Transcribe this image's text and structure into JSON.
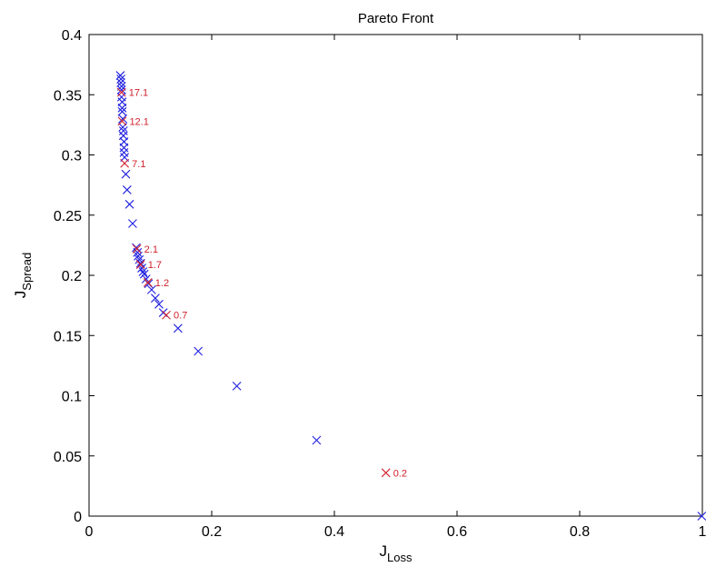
{
  "chart_data": {
    "type": "scatter",
    "title": "Pareto Front",
    "xlabel": "J",
    "xlabel_sub": "Loss",
    "ylabel": "J",
    "ylabel_sub": "Spread",
    "xlim": [
      0,
      1
    ],
    "ylim": [
      0,
      0.4
    ],
    "xticks": [
      0,
      0.2,
      0.4,
      0.6,
      0.8,
      1
    ],
    "xtick_labels": [
      "0",
      "0.2",
      "0.4",
      "0.6",
      "0.8",
      "1"
    ],
    "yticks": [
      0,
      0.05,
      0.1,
      0.15,
      0.2,
      0.25,
      0.3,
      0.35,
      0.4
    ],
    "ytick_labels": [
      "0",
      "0.05",
      "0.1",
      "0.15",
      "0.2",
      "0.25",
      "0.3",
      "0.35",
      "0.4"
    ],
    "grid": false,
    "marker": "x",
    "colors": {
      "blue": "#2020e0",
      "red": "#d0202c"
    },
    "series": [
      {
        "color": "blue",
        "points": [
          [
            0.051,
            0.366
          ],
          [
            0.052,
            0.363
          ],
          [
            0.052,
            0.36
          ],
          [
            0.053,
            0.357
          ],
          [
            0.053,
            0.354
          ],
          [
            0.053,
            0.348
          ],
          [
            0.054,
            0.344
          ],
          [
            0.054,
            0.339
          ],
          [
            0.054,
            0.336
          ],
          [
            0.055,
            0.33
          ],
          [
            0.055,
            0.323
          ],
          [
            0.056,
            0.32
          ],
          [
            0.056,
            0.316
          ],
          [
            0.057,
            0.311
          ],
          [
            0.057,
            0.306
          ],
          [
            0.057,
            0.302
          ],
          [
            0.058,
            0.298
          ],
          [
            0.06,
            0.284
          ],
          [
            0.062,
            0.271
          ],
          [
            0.066,
            0.259
          ],
          [
            0.071,
            0.243
          ],
          [
            0.077,
            0.223
          ],
          [
            0.079,
            0.219
          ],
          [
            0.08,
            0.216
          ],
          [
            0.082,
            0.213
          ],
          [
            0.084,
            0.21
          ],
          [
            0.086,
            0.206
          ],
          [
            0.088,
            0.203
          ],
          [
            0.09,
            0.201
          ],
          [
            0.093,
            0.197
          ],
          [
            0.097,
            0.193
          ],
          [
            0.102,
            0.188
          ],
          [
            0.108,
            0.181
          ],
          [
            0.114,
            0.176
          ],
          [
            0.121,
            0.169
          ],
          [
            0.145,
            0.156
          ],
          [
            0.178,
            0.137
          ],
          [
            0.241,
            0.108
          ],
          [
            0.371,
            0.063
          ],
          [
            0.999,
            0.0
          ]
        ]
      },
      {
        "color": "red",
        "points": [
          [
            0.053,
            0.352
          ],
          [
            0.054,
            0.328
          ],
          [
            0.058,
            0.293
          ],
          [
            0.078,
            0.222
          ],
          [
            0.084,
            0.209
          ],
          [
            0.096,
            0.194
          ],
          [
            0.126,
            0.167
          ],
          [
            0.484,
            0.036
          ]
        ],
        "labels": [
          "17.1",
          "12.1",
          "7.1",
          "2.1",
          "1.7",
          "1.2",
          "0.7",
          "0.2"
        ]
      }
    ]
  }
}
